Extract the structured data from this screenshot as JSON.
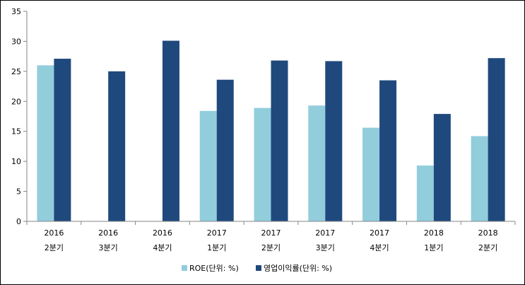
{
  "chart_data": {
    "type": "bar",
    "title": "",
    "xlabel": "",
    "ylabel": "",
    "ylim": [
      0,
      35
    ],
    "yticks": [
      0,
      5,
      10,
      15,
      20,
      25,
      30,
      35
    ],
    "categories": [
      {
        "year": "2016",
        "quarter": "2분기"
      },
      {
        "year": "2016",
        "quarter": "3분기"
      },
      {
        "year": "2016",
        "quarter": "4분기"
      },
      {
        "year": "2017",
        "quarter": "1분기"
      },
      {
        "year": "2017",
        "quarter": "2분기"
      },
      {
        "year": "2017",
        "quarter": "3분기"
      },
      {
        "year": "2017",
        "quarter": "4분기"
      },
      {
        "year": "2018",
        "quarter": "1분기"
      },
      {
        "year": "2018",
        "quarter": "2분기"
      }
    ],
    "series": [
      {
        "name": "ROE(단위: %)",
        "color": "#92CDDC",
        "values": [
          26.0,
          null,
          null,
          18.4,
          18.9,
          19.3,
          15.6,
          9.3,
          14.2
        ]
      },
      {
        "name": "영업이익률(단위: %)",
        "color": "#1F497D",
        "values": [
          27.1,
          25.0,
          30.1,
          23.6,
          26.8,
          26.7,
          23.5,
          17.9,
          27.2
        ]
      }
    ],
    "legend_position": "bottom-center",
    "grid": false
  }
}
